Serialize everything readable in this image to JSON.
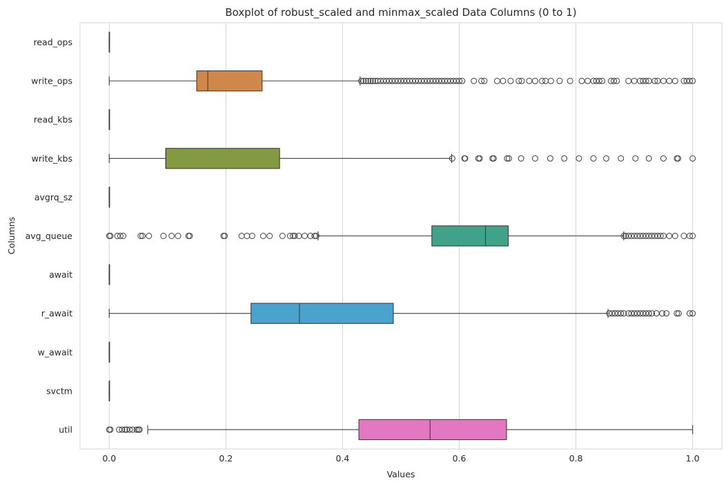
{
  "chart_data": {
    "type": "boxplot",
    "orientation": "horizontal",
    "title": "Boxplot of robust_scaled and minmax_scaled Data Columns (0 to 1)",
    "xlabel": "Values",
    "ylabel": "Columns",
    "xlim": [
      -0.05,
      1.05
    ],
    "xticks": [
      0.0,
      0.2,
      0.4,
      0.6,
      0.8,
      1.0
    ],
    "xtick_labels": [
      "0.0",
      "0.2",
      "0.4",
      "0.6",
      "0.8",
      "1.0"
    ],
    "grid": "vertical",
    "categories": [
      "read_ops",
      "write_ops",
      "read_kbs",
      "write_kbs",
      "avgrq_sz",
      "avg_queue",
      "await",
      "r_await",
      "w_await",
      "svctm",
      "util"
    ],
    "boxes": [
      {
        "name": "read_ops",
        "color": "#3274a1",
        "q1": 0,
        "median": 0,
        "q3": 0,
        "whisker_low": 0,
        "whisker_high": 0,
        "outliers": []
      },
      {
        "name": "write_ops",
        "color": "#d0884a",
        "q1": 0.15,
        "median": 0.169,
        "q3": 0.262,
        "whisker_low": 0.0,
        "whisker_high": 0.43,
        "outliers": [
          0.432,
          0.436,
          0.44,
          0.444,
          0.448,
          0.452,
          0.456,
          0.46,
          0.465,
          0.47,
          0.475,
          0.48,
          0.485,
          0.49,
          0.495,
          0.5,
          0.505,
          0.51,
          0.515,
          0.52,
          0.525,
          0.53,
          0.535,
          0.54,
          0.545,
          0.55,
          0.555,
          0.56,
          0.565,
          0.57,
          0.575,
          0.58,
          0.585,
          0.59,
          0.595,
          0.6,
          0.605,
          0.625,
          0.638,
          0.643,
          0.665,
          0.675,
          0.688,
          0.702,
          0.707,
          0.72,
          0.73,
          0.742,
          0.748,
          0.757,
          0.772,
          0.79,
          0.81,
          0.82,
          0.83,
          0.835,
          0.84,
          0.845,
          0.86,
          0.865,
          0.87,
          0.89,
          0.9,
          0.91,
          0.915,
          0.92,
          0.925,
          0.935,
          0.94,
          0.95,
          0.96,
          0.97,
          0.985,
          0.99,
          0.995,
          1.0
        ]
      },
      {
        "name": "read_kbs",
        "color": "#3a923a",
        "q1": 0,
        "median": 0,
        "q3": 0,
        "whisker_low": 0,
        "whisker_high": 0,
        "outliers": []
      },
      {
        "name": "write_kbs",
        "color": "#849a40",
        "q1": 0.097,
        "median": 0.097,
        "q3": 0.292,
        "whisker_low": 0.0,
        "whisker_high": 0.587,
        "outliers": [
          0.588,
          0.609,
          0.61,
          0.633,
          0.635,
          0.657,
          0.659,
          0.682,
          0.685,
          0.706,
          0.73,
          0.756,
          0.78,
          0.805,
          0.83,
          0.852,
          0.877,
          0.902,
          0.925,
          0.95,
          0.973,
          0.975,
          1.0
        ]
      },
      {
        "name": "avgrq_sz",
        "color": "#8d7866",
        "q1": 0,
        "median": 0,
        "q3": 0,
        "whisker_low": 0,
        "whisker_high": 0,
        "outliers": []
      },
      {
        "name": "avg_queue",
        "color": "#41a28a",
        "q1": 0.553,
        "median": 0.645,
        "q3": 0.684,
        "whisker_low": 0.358,
        "whisker_high": 0.882,
        "outliers": [
          0.0,
          0.002,
          0.014,
          0.019,
          0.024,
          0.054,
          0.057,
          0.068,
          0.093,
          0.107,
          0.118,
          0.136,
          0.138,
          0.196,
          0.198,
          0.227,
          0.236,
          0.245,
          0.264,
          0.275,
          0.297,
          0.31,
          0.315,
          0.318,
          0.325,
          0.335,
          0.345,
          0.352,
          0.355,
          0.882,
          0.885,
          0.89,
          0.895,
          0.9,
          0.905,
          0.91,
          0.915,
          0.92,
          0.925,
          0.93,
          0.935,
          0.94,
          0.945,
          0.95,
          0.96,
          0.97,
          0.985,
          0.995,
          1.0
        ]
      },
      {
        "name": "await",
        "color": "#7a5aa8",
        "q1": 0,
        "median": 0,
        "q3": 0,
        "whisker_low": 0,
        "whisker_high": 0,
        "outliers": []
      },
      {
        "name": "r_await",
        "color": "#4aa3cc",
        "q1": 0.243,
        "median": 0.326,
        "q3": 0.487,
        "whisker_low": 0.0,
        "whisker_high": 0.855,
        "outliers": [
          0.857,
          0.862,
          0.867,
          0.872,
          0.877,
          0.882,
          0.89,
          0.895,
          0.9,
          0.905,
          0.91,
          0.915,
          0.92,
          0.925,
          0.93,
          0.938,
          0.948,
          0.955,
          0.973,
          0.976,
          0.995,
          1.0
        ]
      },
      {
        "name": "w_await",
        "color": "#9b9b9b",
        "q1": 0,
        "median": 0,
        "q3": 0,
        "whisker_low": 0,
        "whisker_high": 0,
        "outliers": []
      },
      {
        "name": "svctm",
        "color": "#9b9b9b",
        "q1": 0,
        "median": 0,
        "q3": 0,
        "whisker_low": 0,
        "whisker_high": 0,
        "outliers": []
      },
      {
        "name": "util",
        "color": "#e377c0",
        "q1": 0.428,
        "median": 0.55,
        "q3": 0.681,
        "whisker_low": 0.066,
        "whisker_high": 1.0,
        "outliers": [
          0.0,
          0.002,
          0.017,
          0.022,
          0.027,
          0.03,
          0.035,
          0.04,
          0.047,
          0.05,
          0.052
        ]
      }
    ]
  },
  "style": {
    "background": "#ffffff",
    "grid_color": "#d4d4d4",
    "line_color": "#3d3d3d",
    "frame_color": "#d4d4d4"
  }
}
